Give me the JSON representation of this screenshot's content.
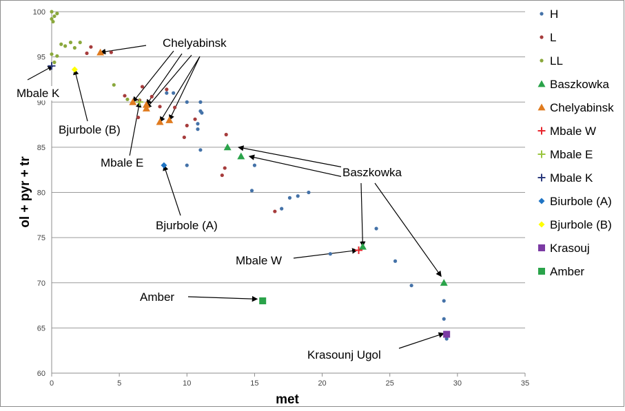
{
  "chart_data": {
    "type": "scatter",
    "title": "",
    "xlabel": "met",
    "ylabel": "ol + pyr + tr",
    "xlim": [
      0,
      35
    ],
    "ylim": [
      60,
      100
    ],
    "x_ticks": [
      "0",
      "5",
      "10",
      "15",
      "20",
      "25",
      "30",
      "35"
    ],
    "y_ticks": [
      "60",
      "65",
      "70",
      "75",
      "80",
      "85",
      "90",
      "95",
      "100"
    ],
    "grid": "horizontal",
    "legend_position": "right",
    "series": [
      {
        "name": "H",
        "marker": "circle",
        "color": "#4472a8",
        "points": [
          [
            8.5,
            91
          ],
          [
            9,
            91
          ],
          [
            10,
            90
          ],
          [
            11,
            90
          ],
          [
            10.8,
            87.6
          ],
          [
            10.8,
            87
          ],
          [
            11,
            89
          ],
          [
            11.1,
            88.8
          ],
          [
            11,
            84.7
          ],
          [
            10,
            83
          ],
          [
            15,
            83
          ],
          [
            14.8,
            80.2
          ],
          [
            17,
            78.2
          ],
          [
            17.6,
            79.4
          ],
          [
            18.2,
            79.6
          ],
          [
            19,
            80
          ],
          [
            20.6,
            73.2
          ],
          [
            24,
            76
          ],
          [
            25.4,
            72.4
          ],
          [
            26.6,
            69.7
          ],
          [
            29,
            68
          ],
          [
            29,
            66
          ],
          [
            29.2,
            63.8
          ]
        ]
      },
      {
        "name": "L",
        "marker": "circle",
        "color": "#a63c3c",
        "points": [
          [
            2.6,
            95.4
          ],
          [
            2.9,
            96.1
          ],
          [
            4.4,
            95.5
          ],
          [
            5.4,
            90.7
          ],
          [
            6.5,
            90.2
          ],
          [
            6.7,
            91.7
          ],
          [
            6.4,
            88.3
          ],
          [
            7.4,
            90.6
          ],
          [
            8,
            89.5
          ],
          [
            8.5,
            91.4
          ],
          [
            9.1,
            89.4
          ],
          [
            9.8,
            86.1
          ],
          [
            10,
            87.4
          ],
          [
            10.6,
            88.1
          ],
          [
            12.9,
            86.4
          ],
          [
            12.6,
            81.9
          ],
          [
            12.8,
            82.7
          ],
          [
            16.5,
            77.9
          ]
        ]
      },
      {
        "name": "LL",
        "marker": "circle",
        "color": "#8aa83c",
        "points": [
          [
            0,
            100
          ],
          [
            0.2,
            99.5
          ],
          [
            0.4,
            99.8
          ],
          [
            0,
            99.2
          ],
          [
            0.1,
            98.9
          ],
          [
            0,
            95.3
          ],
          [
            0.4,
            95.1
          ],
          [
            0.2,
            94.4
          ],
          [
            0.7,
            96.4
          ],
          [
            1,
            96.2
          ],
          [
            1.4,
            96.6
          ],
          [
            1.7,
            96
          ],
          [
            2.1,
            96.6
          ],
          [
            4.6,
            91.9
          ],
          [
            5.6,
            90.3
          ]
        ]
      },
      {
        "name": "Baszkowka",
        "marker": "triangle",
        "color": "#2aa34a",
        "points": [
          [
            13,
            85
          ],
          [
            14,
            84
          ],
          [
            23,
            74
          ],
          [
            29,
            70
          ]
        ]
      },
      {
        "name": "Chelyabinsk",
        "marker": "triangle",
        "color": "#e07b1f",
        "points": [
          [
            3.6,
            95.5
          ],
          [
            6,
            90
          ],
          [
            7,
            89.7
          ],
          [
            7,
            89.3
          ],
          [
            8,
            87.8
          ],
          [
            8.7,
            88
          ]
        ]
      },
      {
        "name": "Mbale W",
        "marker": "plus",
        "color": "#e8262d",
        "points": [
          [
            22.7,
            73.6
          ]
        ]
      },
      {
        "name": "Mbale E",
        "marker": "plus",
        "color": "#9ac53e",
        "points": [
          [
            6.5,
            90
          ]
        ]
      },
      {
        "name": "Mbale K",
        "marker": "plus",
        "color": "#2b3a7c",
        "points": [
          [
            0,
            94
          ]
        ]
      },
      {
        "name": "Biurbole (A)",
        "marker": "diamond",
        "color": "#1f74c4",
        "points": [
          [
            8.3,
            83
          ]
        ]
      },
      {
        "name": "Bjurbole (B)",
        "marker": "diamond",
        "color": "#ffff00",
        "points": [
          [
            1.7,
            93.6
          ]
        ]
      },
      {
        "name": "Krasouj",
        "marker": "square",
        "color": "#7b3aa3",
        "points": [
          [
            29.2,
            64.3
          ]
        ]
      },
      {
        "name": "Amber",
        "marker": "square",
        "color": "#2aa34a",
        "points": [
          [
            15.6,
            68
          ]
        ]
      }
    ],
    "annotations": [
      {
        "text": "Chelyabinsk",
        "arrows_to": [
          [
            3.6,
            95.5
          ],
          [
            6,
            90
          ],
          [
            7,
            89.7
          ],
          [
            7,
            89.3
          ],
          [
            8,
            87.8
          ],
          [
            8.7,
            88
          ]
        ]
      },
      {
        "text": "Mbale K",
        "arrows_to": [
          [
            0,
            94
          ]
        ]
      },
      {
        "text": "Bjurbole (B)",
        "arrows_to": [
          [
            1.7,
            93.6
          ]
        ]
      },
      {
        "text": "Mbale E",
        "arrows_to": [
          [
            6.5,
            90
          ]
        ]
      },
      {
        "text": "Bjurbole (A)",
        "arrows_to": [
          [
            8.3,
            83
          ]
        ]
      },
      {
        "text": "Baszkowka",
        "arrows_to": [
          [
            13.8,
            85
          ],
          [
            14.6,
            84
          ],
          [
            23,
            74
          ],
          [
            28.8,
            70.7
          ]
        ]
      },
      {
        "text": "Mbale W",
        "arrows_to": [
          [
            22.6,
            73.6
          ]
        ]
      },
      {
        "text": "Amber",
        "arrows_to": [
          [
            15.2,
            68.2
          ]
        ]
      },
      {
        "text": "Krasounj Ugol",
        "arrows_to": [
          [
            29,
            64.4
          ]
        ]
      }
    ]
  }
}
